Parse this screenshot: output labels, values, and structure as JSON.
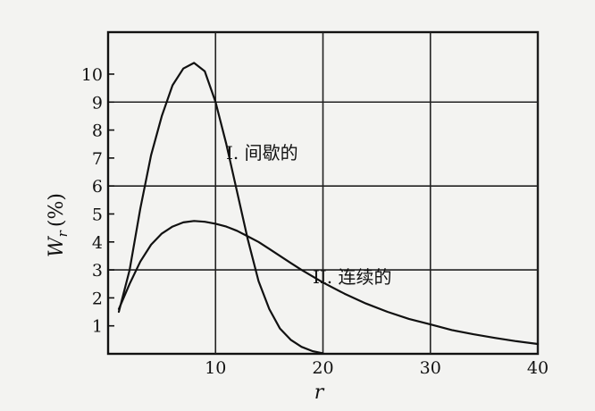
{
  "chart_data": {
    "type": "line",
    "xlabel": "r",
    "ylabel": "W",
    "ylabel_subscript": "r",
    "ylabel_unit": "(%)",
    "xlim": [
      0,
      40
    ],
    "ylim": [
      0,
      11.5
    ],
    "xticks": [
      10,
      20,
      30,
      40
    ],
    "yticks": [
      1,
      2,
      3,
      4,
      5,
      6,
      7,
      8,
      9,
      10
    ],
    "grid_x": [
      10,
      20,
      30,
      40
    ],
    "grid_y": [
      3,
      6,
      9
    ],
    "grid": true,
    "series": [
      {
        "name": "I. 间歇的",
        "x": [
          1,
          2,
          3,
          4,
          5,
          6,
          7,
          8,
          9,
          10,
          11,
          12,
          13,
          14,
          15,
          16,
          17,
          18,
          19,
          20
        ],
        "y": [
          1.5,
          3.0,
          5.2,
          7.1,
          8.5,
          9.6,
          10.2,
          10.4,
          10.1,
          9.0,
          7.5,
          5.8,
          4.1,
          2.6,
          1.6,
          0.9,
          0.5,
          0.25,
          0.1,
          0.02
        ]
      },
      {
        "name": "II.  连续的",
        "x": [
          1,
          2,
          3,
          4,
          5,
          6,
          7,
          8,
          9,
          10,
          11,
          12,
          13,
          14,
          15,
          16,
          17,
          18,
          20,
          22,
          24,
          26,
          28,
          30,
          32,
          34,
          36,
          38,
          40
        ],
        "y": [
          1.6,
          2.5,
          3.3,
          3.9,
          4.3,
          4.55,
          4.7,
          4.75,
          4.72,
          4.65,
          4.55,
          4.4,
          4.2,
          4.0,
          3.75,
          3.5,
          3.25,
          3.0,
          2.55,
          2.15,
          1.8,
          1.5,
          1.25,
          1.05,
          0.85,
          0.7,
          0.57,
          0.45,
          0.35
        ]
      }
    ]
  }
}
